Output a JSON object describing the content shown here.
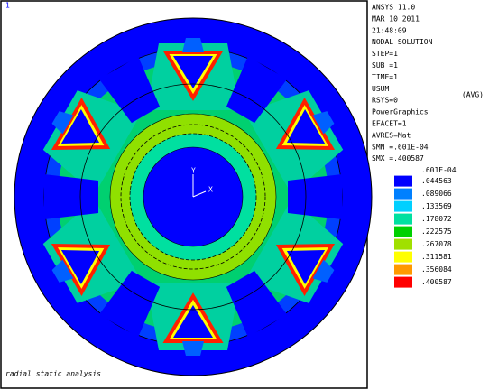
{
  "corner_mark": "1",
  "header_lines": [
    "ANSYS 11.0",
    "MAR 10 2011",
    "21:48:09",
    "NODAL SOLUTION",
    "STEP=1",
    "SUB =1",
    "TIME=1",
    "USUM",
    "RSYS=0",
    "PowerGraphics",
    "EFACET=1",
    "AVRES=Mat",
    "SMN =.601E-04",
    "SMX =.400587"
  ],
  "header_side_note": "(AVG)",
  "axis_labels": {
    "y": "Y",
    "x": "X"
  },
  "legend": {
    "labels": [
      ".601E-04",
      ".044563",
      ".089066",
      ".133569",
      ".178072",
      ".222575",
      ".267078",
      ".311581",
      ".356084",
      ".400587"
    ],
    "colors": [
      "#0000ff",
      "#0080ff",
      "#00d0ff",
      "#00e0a0",
      "#00d000",
      "#a0e000",
      "#ffff00",
      "#ff9900",
      "#ff0000"
    ]
  },
  "caption": "radial static analysis"
}
